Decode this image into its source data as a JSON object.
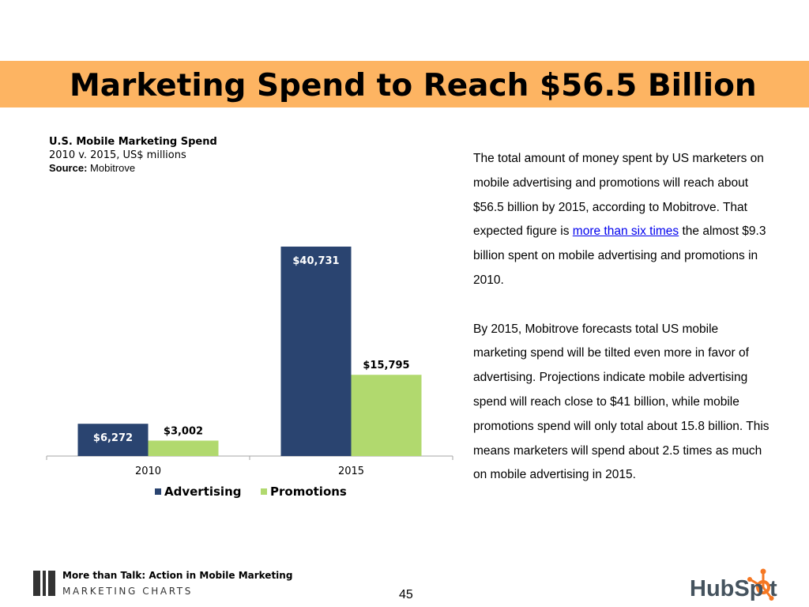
{
  "slide": {
    "title": "Marketing Spend to Reach $56.5 Billion",
    "page_number": "45"
  },
  "chart_header": {
    "title": "U.S. Mobile Marketing Spend",
    "subtitle": "2010 v. 2015, US$ millions",
    "source_label": "Source:",
    "source": "Mobitrove"
  },
  "chart_data": {
    "type": "bar",
    "categories": [
      "2010",
      "2015"
    ],
    "series": [
      {
        "name": "Advertising",
        "values": [
          6272,
          40731
        ],
        "labels": [
          "$6,272",
          "$40,731"
        ],
        "color": "#2a4470"
      },
      {
        "name": "Promotions",
        "values": [
          3002,
          15795
        ],
        "labels": [
          "$3,002",
          "$15,795"
        ],
        "color": "#b1d96e"
      }
    ],
    "legend": "bottom",
    "grid": false
  },
  "text": {
    "p1_a": "The total amount of money spent by US marketers on mobile advertising and promotions will reach about $56.5 billion by 2015, according to Mobitrove. That expected figure is ",
    "p1_link": "more than six times",
    "p1_b": " the almost $9.3 billion spent on mobile advertising and promotions in 2010.",
    "p2": "By 2015, Mobitrove forecasts total US mobile marketing spend will be tilted even more in favor of advertising. Projections indicate mobile advertising spend will reach close to $41 billion, while mobile promotions spend will only total about 15.8 billion. This means marketers will spend about 2.5 times as much on mobile advertising in 2015."
  },
  "footer": {
    "tagline": "More than Talk: Action in Mobile Marketing",
    "brand": "MARKETING CHARTS",
    "logo_text_a": "HubSp",
    "logo_text_b": "t"
  },
  "colors": {
    "title_band": "#fdb462",
    "link": "#0000ee",
    "hubspot_gray": "#45535e",
    "hubspot_orange": "#f57722"
  }
}
